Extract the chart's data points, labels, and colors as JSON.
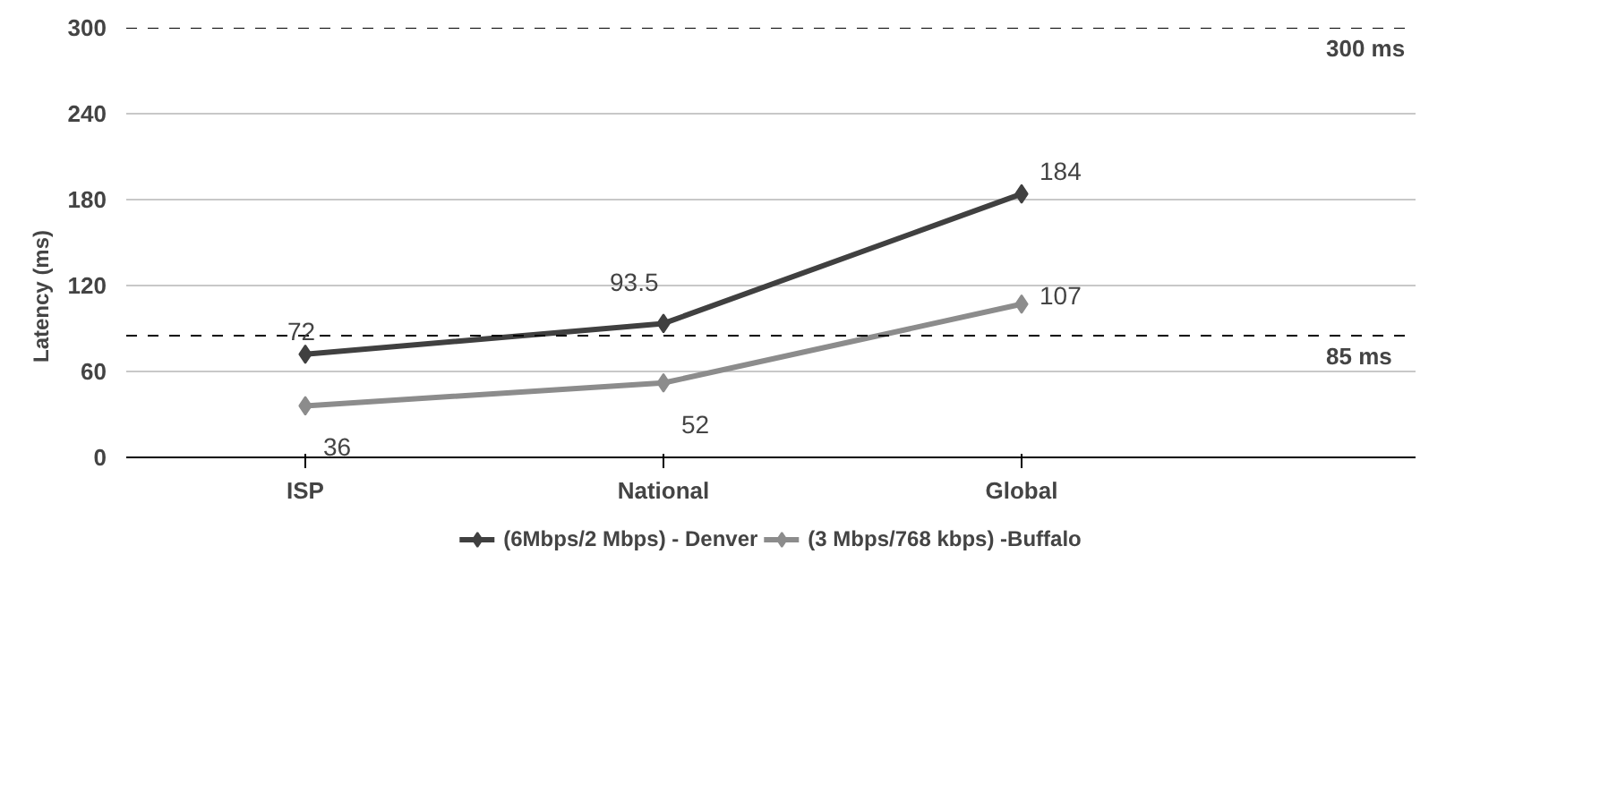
{
  "chart_data": {
    "type": "line",
    "ylabel": "Latency (ms)",
    "categories": [
      "ISP",
      "National",
      "Global"
    ],
    "series": [
      {
        "name": "(6Mbps/2 Mbps) - Denver",
        "color": "#404040",
        "values": [
          72,
          93.5,
          184
        ]
      },
      {
        "name": "(3 Mbps/768 kbps) -Buffalo",
        "color": "#8c8c8c",
        "values": [
          36,
          52,
          107
        ]
      }
    ],
    "ylim": [
      0,
      300
    ],
    "yticks": [
      0,
      60,
      120,
      180,
      240,
      300
    ],
    "grid": "y",
    "legend": "bottom",
    "marker": "diamond",
    "line_style": "solid",
    "data_labels": true,
    "ref_lines": [
      {
        "axis": "y",
        "value": 300,
        "label": "300 ms",
        "color": "#000000",
        "line_style": "dashed"
      },
      {
        "axis": "y",
        "value": 85,
        "label": "85 ms",
        "color": "#000000",
        "line_style": "dashed"
      }
    ]
  }
}
